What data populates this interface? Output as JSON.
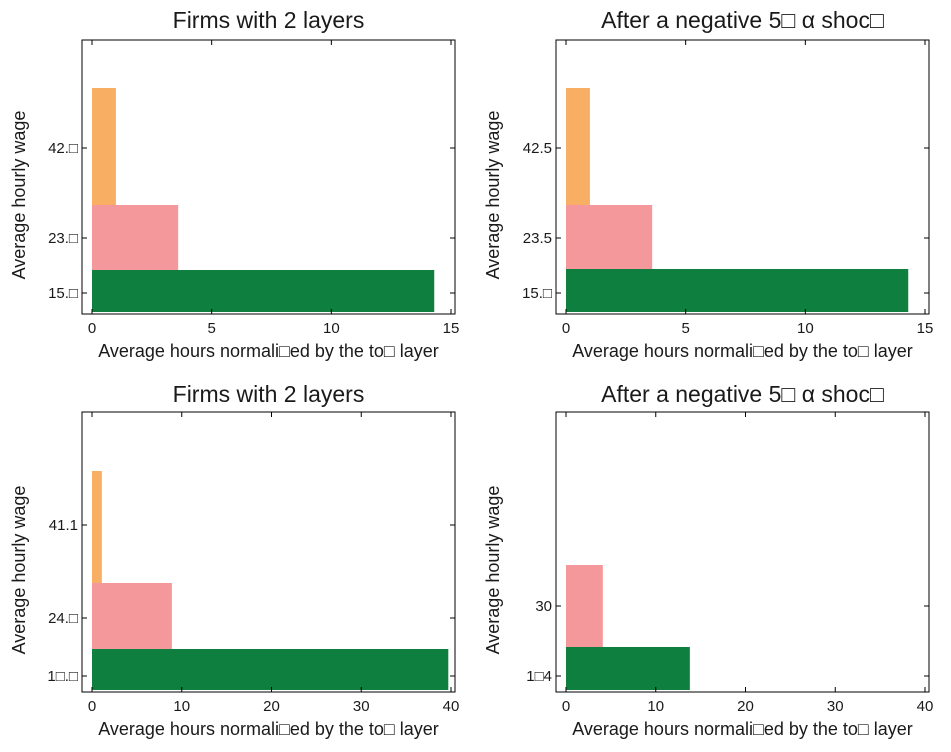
{
  "chart_data": [
    {
      "type": "bar",
      "orientation": "horizontal",
      "title": "Firms with 2 layers",
      "xlabel": "Average hours normali□ed by the to□ layer",
      "ylabel": "Average hourly wage",
      "xlim": [
        0,
        15
      ],
      "xticks": [
        "0",
        "5",
        "10",
        "15"
      ],
      "yticks": [
        "15.□",
        "23.□",
        "42.□"
      ],
      "grid": false,
      "bars": [
        {
          "layer": 1,
          "hours": 14.3,
          "color": "#0f7f3f"
        },
        {
          "layer": 2,
          "hours": 3.6,
          "color": "#f4989b"
        },
        {
          "layer": 3,
          "hours": 1.0,
          "color": "#f9af63"
        }
      ]
    },
    {
      "type": "bar",
      "orientation": "horizontal",
      "title": "After a negative 5□  α shoc□",
      "xlabel": "Average hours normali□ed by the to□ layer",
      "ylabel": "Average hourly wage",
      "xlim": [
        0,
        15
      ],
      "xticks": [
        "0",
        "5",
        "10",
        "15"
      ],
      "yticks": [
        "15.□",
        "23.5",
        "42.5"
      ],
      "grid": false,
      "bars": [
        {
          "layer": 1,
          "hours": 14.3,
          "color": "#0f7f3f"
        },
        {
          "layer": 2,
          "hours": 3.6,
          "color": "#f4989b"
        },
        {
          "layer": 3,
          "hours": 1.0,
          "color": "#f9af63"
        }
      ]
    },
    {
      "type": "bar",
      "orientation": "horizontal",
      "title": "Firms with 2 layers",
      "xlabel": "Average hours normali□ed by the to□ layer",
      "ylabel": "Average hourly wage",
      "xlim": [
        0,
        40
      ],
      "xticks": [
        "0",
        "10",
        "20",
        "30",
        "40"
      ],
      "yticks": [
        "1□.□",
        "24.□",
        "41.1"
      ],
      "grid": false,
      "bars": [
        {
          "layer": 1,
          "hours": 39.7,
          "color": "#0f7f3f"
        },
        {
          "layer": 2,
          "hours": 8.9,
          "color": "#f4989b"
        },
        {
          "layer": 3,
          "hours": 1.1,
          "color": "#f9af63"
        }
      ]
    },
    {
      "type": "bar",
      "orientation": "horizontal",
      "title": "After a negative 5□  α shoc□",
      "xlabel": "Average hours normali□ed by the to□ layer",
      "ylabel": "Average hourly wage",
      "xlim": [
        0,
        40
      ],
      "xticks": [
        "0",
        "10",
        "20",
        "30",
        "40"
      ],
      "yticks": [
        "1□4",
        "30"
      ],
      "grid": false,
      "bars": [
        {
          "layer": 1,
          "hours": 13.8,
          "color": "#0f7f3f"
        },
        {
          "layer": 2,
          "hours": 4.1,
          "color": "#f4989b"
        }
      ]
    }
  ]
}
